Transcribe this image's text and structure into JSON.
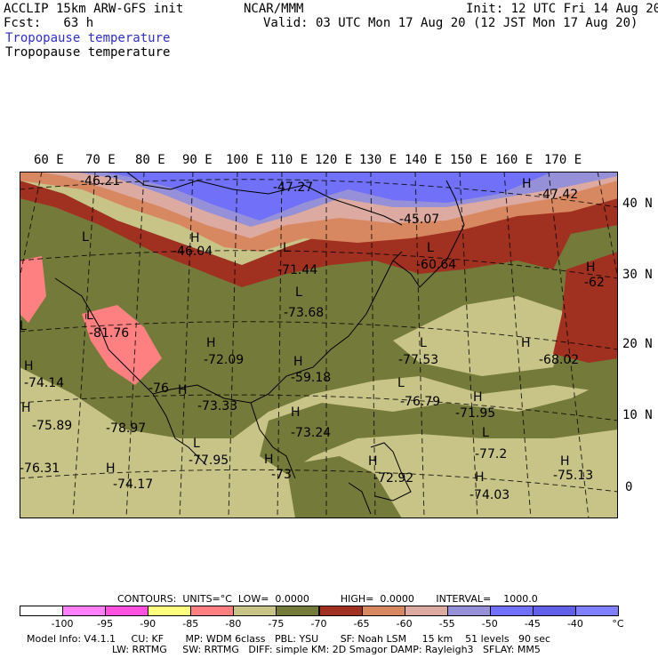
{
  "header": {
    "model": "ACCLIP 15km ARW-GFS init",
    "org": "NCAR/MMM",
    "init": "Init: 12 UTC Fri 14 Aug 20",
    "fcst": "Fcst:   63 h",
    "valid": "Valid: 03 UTC Mon 17 Aug 20 (12 JST Mon 17 Aug 20)",
    "field_blue": "Tropopause temperature",
    "field_black": "Tropopause temperature"
  },
  "lon_labels": [
    "60 E",
    "70 E",
    "80 E",
    "90 E",
    "100 E",
    "110 E",
    "120 E",
    "130 E",
    "140 E",
    "150 E",
    "160 E",
    "170 E"
  ],
  "lat_labels": [
    "40 N",
    "30 N",
    "20 N",
    "10 N",
    "0"
  ],
  "map_labels": [
    {
      "t": "-46.21"
    },
    {
      "t": "-47.27"
    },
    {
      "t": "-47.42"
    },
    {
      "t": "H"
    },
    {
      "t": "-45.07"
    },
    {
      "t": "L"
    },
    {
      "t": "-46.04"
    },
    {
      "t": "H"
    },
    {
      "t": "L"
    },
    {
      "t": "-71.44"
    },
    {
      "t": "L"
    },
    {
      "t": "-60.64"
    },
    {
      "t": "H"
    },
    {
      "t": "-62"
    },
    {
      "t": "L"
    },
    {
      "t": "-73.68"
    },
    {
      "t": "L"
    },
    {
      "t": "-81.76"
    },
    {
      "t": "L"
    },
    {
      "t": "H"
    },
    {
      "t": "-72.09"
    },
    {
      "t": "-77.53"
    },
    {
      "t": "H"
    },
    {
      "t": "-68.02"
    },
    {
      "t": "L"
    },
    {
      "t": "-74.14"
    },
    {
      "t": "H"
    },
    {
      "t": "-76"
    },
    {
      "t": "-59.18"
    },
    {
      "t": "H"
    },
    {
      "t": "L"
    },
    {
      "t": "-76.79"
    },
    {
      "t": "H"
    },
    {
      "t": "-71.95"
    },
    {
      "t": "H"
    },
    {
      "t": "-73.33"
    },
    {
      "t": "H"
    },
    {
      "t": "-75.89"
    },
    {
      "t": "-78.97"
    },
    {
      "t": "H"
    },
    {
      "t": "-73.24"
    },
    {
      "t": "L"
    },
    {
      "t": "-77.2"
    },
    {
      "t": "-76.31"
    },
    {
      "t": "L"
    },
    {
      "t": "-77.95"
    },
    {
      "t": "H"
    },
    {
      "t": "H"
    },
    {
      "t": "H"
    },
    {
      "t": "-75.13"
    },
    {
      "t": "H"
    },
    {
      "t": "-74.17"
    },
    {
      "t": "-73"
    },
    {
      "t": "-72.92"
    },
    {
      "t": "-74.03"
    },
    {
      "t": "H"
    }
  ],
  "contours": {
    "text": "CONTOURS:  UNITS=°C  LOW=  0.0000          HIGH=  0.0000       INTERVAL=    1000.0"
  },
  "colorbar": {
    "labels": [
      "-100",
      "-95",
      "-90",
      "-85",
      "-80",
      "-75",
      "-70",
      "-65",
      "-60",
      "-55",
      "-50",
      "-45",
      "-40"
    ],
    "unit": "°C",
    "colors": [
      "#ffffff",
      "#ff80ff",
      "#ff50e0",
      "#ffff80",
      "#ff8080",
      "#c8c488",
      "#747b3a",
      "#a03020",
      "#d88860",
      "#dcaaa0",
      "#9690d8",
      "#7070f8",
      "#6060e8",
      "#8080ff"
    ]
  },
  "model_info": {
    "line1": "Model Info: V4.1.1     CU: KF       MP: WDM 6class   PBL: YSU       SF: Noah LSM     15 km    51 levels   90 sec",
    "line2": "LW: RRTMG     SW: RRTMG   DIFF: simple KM: 2D Smagor DAMP: Rayleigh3   SFLAY: MM5"
  }
}
